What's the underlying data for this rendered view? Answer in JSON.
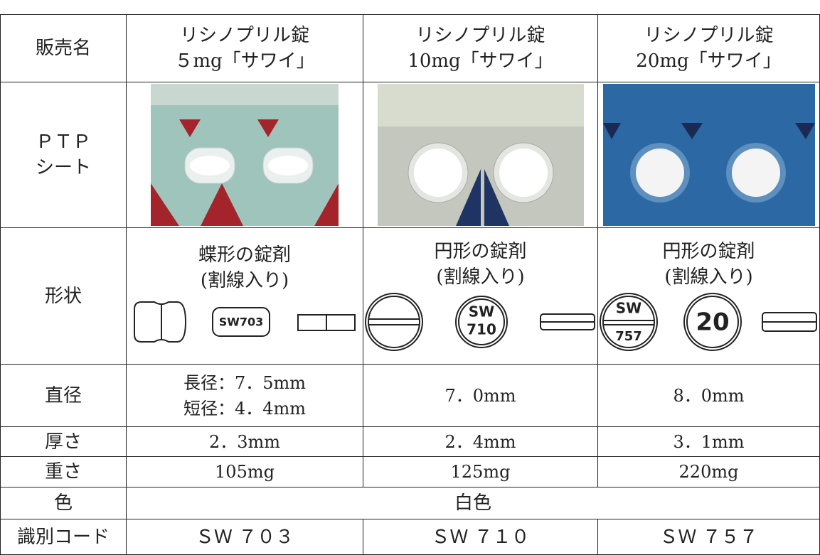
{
  "table": {
    "name_row": {
      "label": "販売名",
      "cells": [
        [
          "リシノプリル錠",
          "５mg「サワイ」"
        ],
        [
          "リシノプリル錠",
          "10mg「サワイ」"
        ],
        [
          "リシノプリル錠",
          "20mg「サワイ」"
        ]
      ]
    },
    "ptp_row": {
      "label": [
        "ＰＴＰ",
        "シート"
      ]
    },
    "shape_row": {
      "label": "形状",
      "cells": [
        {
          "lines": [
            "蝶形の錠剤",
            "(割線入り)"
          ],
          "marks": [
            "SW703"
          ]
        },
        {
          "lines": [
            "円形の錠剤",
            "(割線入り)"
          ],
          "marks": [
            "SW",
            "710"
          ]
        },
        {
          "lines": [
            "円形の錠剤",
            "(割線入り)"
          ],
          "marks": [
            "SW",
            "757",
            "20"
          ]
        }
      ]
    },
    "diameter_row": {
      "label": "直径",
      "cells": [
        [
          "長径：7．5mm",
          "短径：4．4mm"
        ],
        [
          "7．0mm"
        ],
        [
          "8．0mm"
        ]
      ]
    },
    "thickness_row": {
      "label": "厚さ",
      "cells": [
        "2．3mm",
        "2．4mm",
        "3．1mm"
      ]
    },
    "weight_row": {
      "label": "重さ",
      "cells": [
        "105mg",
        "125mg",
        "220mg"
      ]
    },
    "color_row": {
      "label": "色",
      "value": "白色"
    },
    "code_row": {
      "label": "識別コード",
      "cells": [
        "ＳＷ ７０３",
        "ＳＷ ７１０",
        "ＳＷ ７５７"
      ]
    }
  }
}
